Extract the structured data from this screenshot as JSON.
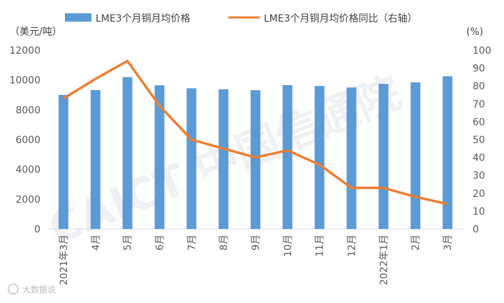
{
  "chart_data": {
    "type": "bar",
    "categories": [
      "2021年3月",
      "4月",
      "5月",
      "6月",
      "7月",
      "8月",
      "9月",
      "10月",
      "11月",
      "12月",
      "2022年1月",
      "2月",
      "3月"
    ],
    "series": [
      {
        "name": "LME3个月铜月均价格",
        "type": "bar",
        "axis": "left",
        "color": "#5B9BD5",
        "values": [
          9000,
          9330,
          10200,
          9650,
          9450,
          9380,
          9320,
          9660,
          9600,
          9500,
          9750,
          9850,
          10250
        ]
      },
      {
        "name": "LME3个月铜月均价格同比（右轴）",
        "type": "line",
        "axis": "right",
        "color": "#ED7D31",
        "values": [
          73,
          84,
          94,
          69,
          50,
          45,
          40,
          44,
          36,
          23,
          23,
          18,
          14
        ]
      }
    ],
    "y_left": {
      "unit_label": "（美元/吨）",
      "range": [
        0,
        12000
      ],
      "ticks": [
        "0",
        "2000",
        "4000",
        "6000",
        "8000",
        "10000",
        "12000"
      ]
    },
    "y_right": {
      "unit_label": "(%)",
      "range": [
        0,
        100
      ],
      "ticks": [
        "0",
        "10",
        "20",
        "30",
        "40",
        "50",
        "60",
        "70",
        "80",
        "90",
        "100"
      ]
    },
    "grid": false,
    "legend_position": "top"
  },
  "watermarks": {
    "background_text": "CAICT 中国信通院",
    "corner_text": "大数据说"
  }
}
